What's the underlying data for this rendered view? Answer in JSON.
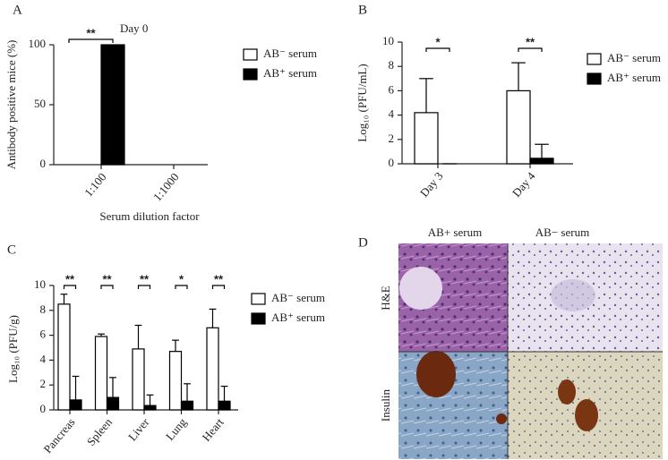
{
  "chart_data": [
    {
      "type": "bar",
      "panel": "A",
      "annotation": "Day 0",
      "ylabel": "Antibody positive mice (%)",
      "xlabel": "Serum dilution factor",
      "categories": [
        "1:100",
        "1:1000"
      ],
      "series": [
        {
          "name": "AB⁻ serum",
          "color": "#ffffff",
          "values": [
            0,
            0
          ]
        },
        {
          "name": "AB⁺ serum",
          "color": "#000000",
          "values": [
            100,
            0
          ]
        }
      ],
      "significance": [
        "**",
        null
      ],
      "ylim": [
        0,
        100
      ],
      "yticks": [
        0,
        50,
        100
      ]
    },
    {
      "type": "bar",
      "panel": "B",
      "ylabel": "Log₁₀ (PFU/mL)",
      "categories": [
        "Day 3",
        "Day 4"
      ],
      "series": [
        {
          "name": "AB⁻ serum",
          "color": "#ffffff",
          "values": [
            4.2,
            6.0
          ],
          "errors": [
            2.8,
            2.3
          ]
        },
        {
          "name": "AB⁺ serum",
          "color": "#000000",
          "values": [
            0,
            0.45
          ],
          "errors": [
            0,
            1.15
          ]
        }
      ],
      "significance": [
        "*",
        "**"
      ],
      "ylim": [
        0,
        10
      ],
      "yticks": [
        0,
        2,
        4,
        6,
        8,
        10
      ]
    },
    {
      "type": "bar",
      "panel": "C",
      "ylabel": "Log₁₀ (PFU/g)",
      "categories": [
        "Pancreas",
        "Spleen",
        "Liver",
        "Lung",
        "Heart"
      ],
      "series": [
        {
          "name": "AB⁻ serum",
          "color": "#ffffff",
          "values": [
            8.5,
            5.9,
            4.9,
            4.7,
            6.6
          ],
          "errors": [
            0.8,
            0.2,
            1.9,
            0.9,
            1.5
          ]
        },
        {
          "name": "AB⁺ serum",
          "color": "#000000",
          "values": [
            0.8,
            1.0,
            0.35,
            0.7,
            0.7
          ],
          "errors": [
            1.9,
            1.6,
            0.85,
            1.4,
            1.2
          ]
        }
      ],
      "significance": [
        "**",
        "**",
        "**",
        "*",
        "**"
      ],
      "ylim": [
        0,
        10
      ],
      "yticks": [
        0,
        2,
        4,
        6,
        8,
        10
      ]
    }
  ],
  "panel_d": {
    "label": "D",
    "columns": [
      "AB+ serum",
      "AB− serum"
    ],
    "rows": [
      "H&E",
      "Insulin"
    ]
  }
}
